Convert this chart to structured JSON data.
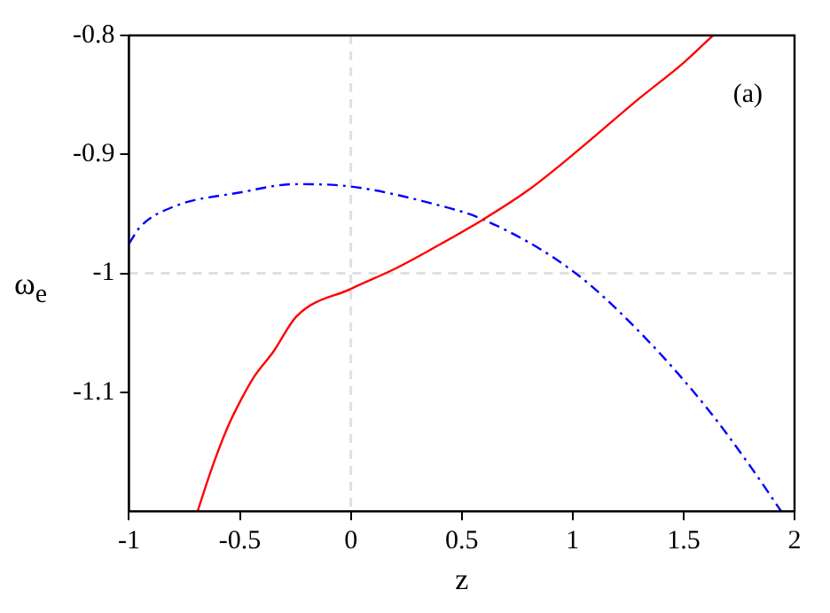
{
  "chart_data": {
    "type": "line",
    "xlabel": "z",
    "ylabel": "ω$_{e}$",
    "xlim": [
      -1,
      2
    ],
    "xticks": [
      -1,
      -0.5,
      0,
      0.5,
      1,
      1.5,
      2
    ],
    "ylim": [
      -1.2,
      -0.8
    ],
    "yticks": [
      -1.1,
      -1,
      -0.9,
      -0.8
    ],
    "grid": false,
    "legend": false,
    "marker": "none",
    "annotations": [
      "(a)"
    ],
    "ref_lines": [
      {
        "axis": "x",
        "value": 0,
        "color": "#e0e0e0",
        "line_style": "dashed"
      },
      {
        "axis": "y",
        "value": -1,
        "color": "#e0e0e0",
        "line_style": "dashed"
      }
    ],
    "series": [
      {
        "color": "#ff0000",
        "line_style": "solid",
        "x": [
          -0.691,
          -0.627,
          -0.557,
          -0.5,
          -0.44,
          -0.35,
          -0.244,
          0,
          0.2,
          0.36,
          0.594,
          0.8,
          0.996,
          1.3,
          1.5,
          1.632
        ],
        "values": [
          -1.2,
          -1.164,
          -1.13,
          -1.108,
          -1.088,
          -1.066,
          -1.036,
          -1.013,
          -0.996,
          -0.98,
          -0.955,
          -0.93,
          -0.901,
          -0.853,
          -0.823,
          -0.8
        ]
      },
      {
        "color": "#0000ff",
        "line_style": "dashed",
        "x": [
          -1,
          -0.95,
          -0.8,
          -0.5,
          -0.25,
          0,
          0.36,
          0.6,
          1.0,
          1.3,
          1.6,
          1.8,
          1.94
        ],
        "values": [
          -0.975,
          -0.961,
          -0.944,
          -0.932,
          -0.925,
          -0.927,
          -0.941,
          -0.955,
          -0.998,
          -1.049,
          -1.112,
          -1.162,
          -1.2
        ]
      }
    ]
  }
}
